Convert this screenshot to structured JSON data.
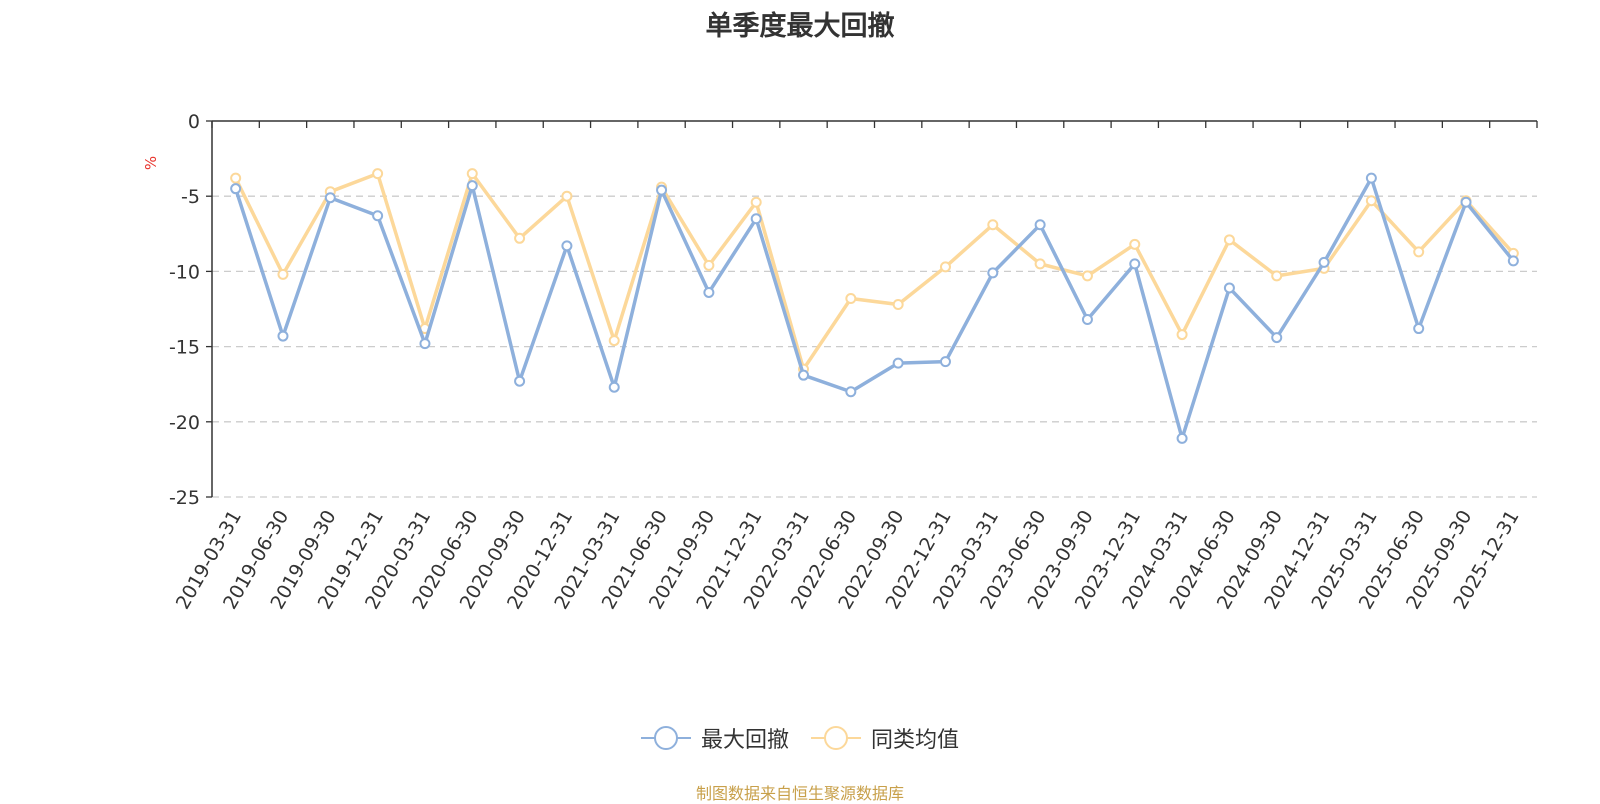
{
  "chart_data": {
    "type": "line",
    "title": "单季度最大回撤",
    "ylabel": "%",
    "ylim": [
      -25,
      0
    ],
    "yticks": [
      0,
      -5,
      -10,
      -15,
      -20,
      -25
    ],
    "categories": [
      "2019-03-31",
      "2019-06-30",
      "2019-09-30",
      "2019-12-31",
      "2020-03-31",
      "2020-06-30",
      "2020-09-30",
      "2020-12-31",
      "2021-03-31",
      "2021-06-30",
      "2021-09-30",
      "2021-12-31",
      "2022-03-31",
      "2022-06-30",
      "2022-09-30",
      "2022-12-31",
      "2023-03-31",
      "2023-06-30",
      "2023-09-30",
      "2023-12-31",
      "2024-03-31",
      "2024-06-30",
      "2024-09-30",
      "2024-12-31",
      "2025-03-31",
      "2025-06-30",
      "2025-09-30",
      "2025-12-31"
    ],
    "series": [
      {
        "name": "最大回撤",
        "color": "#8eb0dc",
        "values": [
          -4.5,
          -14.3,
          -5.1,
          -6.3,
          -14.8,
          -4.3,
          -17.3,
          -8.3,
          -17.7,
          -4.6,
          -11.4,
          -6.5,
          -16.9,
          -18.0,
          -16.1,
          -16.0,
          -10.1,
          -6.9,
          -13.2,
          -9.5,
          -21.1,
          -11.1,
          -14.4,
          -9.4,
          -3.8,
          -13.8,
          -5.4,
          -9.3
        ]
      },
      {
        "name": "同类均值",
        "color": "#fcd89a",
        "values": [
          -3.8,
          -10.2,
          -4.7,
          -3.5,
          -13.8,
          -3.5,
          -7.8,
          -5.0,
          -14.6,
          -4.4,
          -9.6,
          -5.4,
          -16.5,
          -11.8,
          -12.2,
          -9.7,
          -6.9,
          -9.5,
          -10.3,
          -8.2,
          -14.2,
          -7.9,
          -10.3,
          -9.8,
          -5.3,
          -8.7,
          -5.3,
          -8.8
        ]
      }
    ]
  },
  "legend": [
    {
      "name": "最大回撤",
      "color": "#8eb0dc"
    },
    {
      "name": "同类均值",
      "color": "#fcd89a"
    }
  ],
  "footer": {
    "source": "制图数据来自恒生聚源数据库"
  }
}
